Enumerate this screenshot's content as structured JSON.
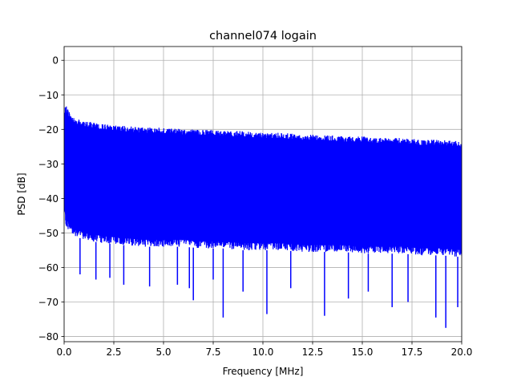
{
  "chart_data": {
    "type": "line",
    "title": "channel074 logain",
    "xlabel": "Frequency [MHz]",
    "ylabel": "PSD [dB]",
    "xlim": [
      0,
      20
    ],
    "ylim": [
      -81.5,
      4
    ],
    "grid": true,
    "xticks": [
      0.0,
      2.5,
      5.0,
      7.5,
      10.0,
      12.5,
      15.0,
      17.5,
      20.0
    ],
    "xtick_labels": [
      "0.0",
      "2.5",
      "5.0",
      "7.5",
      "10.0",
      "12.5",
      "15.0",
      "17.5",
      "20.0"
    ],
    "yticks": [
      0,
      -10,
      -20,
      -30,
      -40,
      -50,
      -60,
      -70,
      -80
    ],
    "ytick_labels": [
      "0",
      "−10",
      "−20",
      "−30",
      "−40",
      "−50",
      "−60",
      "−70",
      "−80"
    ],
    "series": [
      {
        "color": "#0000ff",
        "envelope": {
          "x": [
            0.0,
            0.1,
            0.3,
            0.6,
            1.0,
            2.0,
            3.0,
            4.0,
            5.0,
            6.0,
            7.0,
            8.0,
            9.0,
            10.0,
            11.0,
            12.0,
            13.0,
            14.0,
            15.0,
            16.0,
            17.0,
            18.0,
            19.0,
            20.0
          ],
          "upper": [
            -14,
            -13,
            -15.5,
            -17,
            -17.5,
            -18.5,
            -19,
            -19.5,
            -19.5,
            -20,
            -20,
            -20.5,
            -20.5,
            -21,
            -21,
            -21.5,
            -21.5,
            -22,
            -22,
            -22.5,
            -22.5,
            -23,
            -23,
            -23.5
          ],
          "lower": [
            -45,
            -48,
            -50,
            -51,
            -52,
            -53,
            -53.5,
            -54,
            -54,
            -54,
            -54.5,
            -54.5,
            -55,
            -55,
            -55,
            -55.5,
            -55.5,
            -55.5,
            -56,
            -56,
            -56,
            -56.5,
            -56.5,
            -57
          ]
        },
        "dips": [
          {
            "x": 0.8,
            "y": -62
          },
          {
            "x": 1.6,
            "y": -63.5
          },
          {
            "x": 2.3,
            "y": -63
          },
          {
            "x": 3.0,
            "y": -65
          },
          {
            "x": 4.3,
            "y": -65.5
          },
          {
            "x": 5.7,
            "y": -65
          },
          {
            "x": 6.3,
            "y": -66
          },
          {
            "x": 6.5,
            "y": -69.5
          },
          {
            "x": 7.5,
            "y": -63.5
          },
          {
            "x": 8.0,
            "y": -74.5
          },
          {
            "x": 9.0,
            "y": -67
          },
          {
            "x": 10.2,
            "y": -73.5
          },
          {
            "x": 11.4,
            "y": -66
          },
          {
            "x": 13.1,
            "y": -74
          },
          {
            "x": 14.3,
            "y": -69
          },
          {
            "x": 15.3,
            "y": -67
          },
          {
            "x": 16.5,
            "y": -71.5
          },
          {
            "x": 17.3,
            "y": -70
          },
          {
            "x": 18.7,
            "y": -74.5
          },
          {
            "x": 19.2,
            "y": -77.5
          },
          {
            "x": 19.8,
            "y": -71.5
          }
        ]
      }
    ]
  }
}
